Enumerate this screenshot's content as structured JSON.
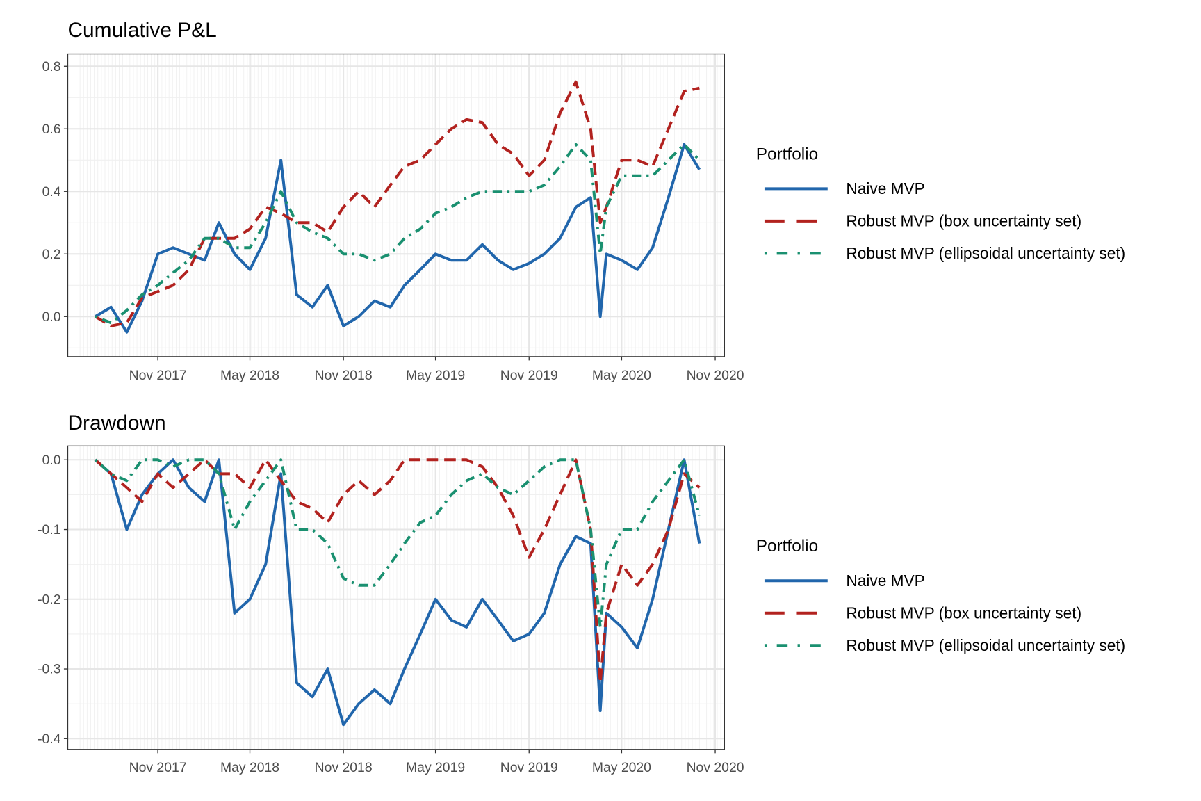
{
  "legend": {
    "title": "Portfolio",
    "entries": [
      {
        "name": "Naive MVP",
        "color": "#2166ac",
        "linetype": "solid"
      },
      {
        "name": "Robust MVP (box uncertainty set)",
        "color": "#b2221f",
        "linetype": "dashed"
      },
      {
        "name": "Robust MVP (ellipsoidal uncertainty set)",
        "color": "#1a9070",
        "linetype": "dotdash"
      }
    ]
  },
  "chart_data": [
    {
      "type": "line",
      "title": "Cumulative P&L",
      "xlabel": "",
      "ylabel": "",
      "xlim": [
        "2017-06-01",
        "2020-11-20"
      ],
      "ylim": [
        -0.128,
        0.84
      ],
      "grid": true,
      "legend_position": "right",
      "x_ticks": [
        {
          "date": "2017-11-01",
          "label": "Nov 2017"
        },
        {
          "date": "2018-05-01",
          "label": "May 2018"
        },
        {
          "date": "2018-11-01",
          "label": "Nov 2018"
        },
        {
          "date": "2019-05-01",
          "label": "May 2019"
        },
        {
          "date": "2019-11-01",
          "label": "Nov 2019"
        },
        {
          "date": "2020-05-01",
          "label": "May 2020"
        },
        {
          "date": "2020-11-01",
          "label": "Nov 2020"
        }
      ],
      "y_ticks": [
        {
          "value": 0.0,
          "label": "0.0"
        },
        {
          "value": 0.2,
          "label": "0.2"
        },
        {
          "value": 0.4,
          "label": "0.4"
        },
        {
          "value": 0.6,
          "label": "0.6"
        },
        {
          "value": 0.8,
          "label": "0.8"
        }
      ],
      "x": [
        "2017-07-01",
        "2017-08-01",
        "2017-09-01",
        "2017-10-01",
        "2017-11-01",
        "2017-12-01",
        "2018-01-01",
        "2018-02-01",
        "2018-03-01",
        "2018-04-01",
        "2018-05-01",
        "2018-06-01",
        "2018-07-01",
        "2018-08-01",
        "2018-09-01",
        "2018-10-01",
        "2018-11-01",
        "2018-12-01",
        "2019-01-01",
        "2019-02-01",
        "2019-03-01",
        "2019-04-01",
        "2019-05-01",
        "2019-06-01",
        "2019-07-01",
        "2019-08-01",
        "2019-09-01",
        "2019-10-01",
        "2019-11-01",
        "2019-12-01",
        "2020-01-01",
        "2020-02-01",
        "2020-03-01",
        "2020-03-20",
        "2020-04-01",
        "2020-05-01",
        "2020-06-01",
        "2020-07-01",
        "2020-08-01",
        "2020-09-01",
        "2020-10-01"
      ],
      "series": [
        {
          "name": "Naive MVP",
          "values": [
            0.0,
            0.03,
            -0.05,
            0.05,
            0.2,
            0.22,
            0.2,
            0.18,
            0.3,
            0.2,
            0.15,
            0.25,
            0.5,
            0.07,
            0.03,
            0.1,
            -0.03,
            0.0,
            0.05,
            0.03,
            0.1,
            0.15,
            0.2,
            0.18,
            0.18,
            0.23,
            0.18,
            0.15,
            0.17,
            0.2,
            0.25,
            0.35,
            0.38,
            0.0,
            0.2,
            0.18,
            0.15,
            0.22,
            0.38,
            0.55,
            0.47
          ]
        },
        {
          "name": "Robust MVP (box uncertainty set)",
          "values": [
            0.0,
            -0.03,
            -0.02,
            0.06,
            0.08,
            0.1,
            0.15,
            0.25,
            0.25,
            0.25,
            0.28,
            0.35,
            0.33,
            0.3,
            0.3,
            0.27,
            0.35,
            0.4,
            0.35,
            0.42,
            0.48,
            0.5,
            0.55,
            0.6,
            0.63,
            0.62,
            0.55,
            0.52,
            0.45,
            0.5,
            0.65,
            0.75,
            0.6,
            0.3,
            0.35,
            0.5,
            0.5,
            0.48,
            0.6,
            0.72,
            0.73
          ]
        },
        {
          "name": "Robust MVP (ellipsoidal uncertainty set)",
          "values": [
            0.0,
            -0.02,
            0.02,
            0.07,
            0.1,
            0.14,
            0.18,
            0.25,
            0.25,
            0.22,
            0.22,
            0.3,
            0.4,
            0.3,
            0.27,
            0.25,
            0.2,
            0.2,
            0.18,
            0.2,
            0.25,
            0.28,
            0.33,
            0.35,
            0.38,
            0.4,
            0.4,
            0.4,
            0.4,
            0.42,
            0.48,
            0.55,
            0.5,
            0.2,
            0.35,
            0.45,
            0.45,
            0.45,
            0.5,
            0.55,
            0.5
          ]
        }
      ]
    },
    {
      "type": "line",
      "title": "Drawdown",
      "xlabel": "",
      "ylabel": "",
      "xlim": [
        "2017-06-01",
        "2020-11-20"
      ],
      "ylim": [
        -0.415,
        0.02
      ],
      "grid": true,
      "legend_position": "right",
      "x_ticks": [
        {
          "date": "2017-11-01",
          "label": "Nov 2017"
        },
        {
          "date": "2018-05-01",
          "label": "May 2018"
        },
        {
          "date": "2018-11-01",
          "label": "Nov 2018"
        },
        {
          "date": "2019-05-01",
          "label": "May 2019"
        },
        {
          "date": "2019-11-01",
          "label": "Nov 2019"
        },
        {
          "date": "2020-05-01",
          "label": "May 2020"
        },
        {
          "date": "2020-11-01",
          "label": "Nov 2020"
        }
      ],
      "y_ticks": [
        {
          "value": 0.0,
          "label": "0.0"
        },
        {
          "value": -0.1,
          "label": "-0.1"
        },
        {
          "value": -0.2,
          "label": "-0.2"
        },
        {
          "value": -0.3,
          "label": "-0.3"
        },
        {
          "value": -0.4,
          "label": "-0.4"
        }
      ],
      "x": [
        "2017-07-01",
        "2017-08-01",
        "2017-09-01",
        "2017-10-01",
        "2017-11-01",
        "2017-12-01",
        "2018-01-01",
        "2018-02-01",
        "2018-03-01",
        "2018-04-01",
        "2018-05-01",
        "2018-06-01",
        "2018-07-01",
        "2018-08-01",
        "2018-09-01",
        "2018-10-01",
        "2018-11-01",
        "2018-12-01",
        "2019-01-01",
        "2019-02-01",
        "2019-03-01",
        "2019-04-01",
        "2019-05-01",
        "2019-06-01",
        "2019-07-01",
        "2019-08-01",
        "2019-09-01",
        "2019-10-01",
        "2019-11-01",
        "2019-12-01",
        "2020-01-01",
        "2020-02-01",
        "2020-03-01",
        "2020-03-20",
        "2020-04-01",
        "2020-05-01",
        "2020-06-01",
        "2020-07-01",
        "2020-08-01",
        "2020-09-01",
        "2020-10-01"
      ],
      "series": [
        {
          "name": "Naive MVP",
          "values": [
            0.0,
            -0.02,
            -0.1,
            -0.05,
            -0.02,
            0.0,
            -0.04,
            -0.06,
            0.0,
            -0.22,
            -0.2,
            -0.15,
            -0.02,
            -0.32,
            -0.34,
            -0.3,
            -0.38,
            -0.35,
            -0.33,
            -0.35,
            -0.3,
            -0.25,
            -0.2,
            -0.23,
            -0.24,
            -0.2,
            -0.23,
            -0.26,
            -0.25,
            -0.22,
            -0.15,
            -0.11,
            -0.12,
            -0.36,
            -0.22,
            -0.24,
            -0.27,
            -0.2,
            -0.1,
            0.0,
            -0.12
          ]
        },
        {
          "name": "Robust MVP (box uncertainty set)",
          "values": [
            0.0,
            -0.02,
            -0.04,
            -0.06,
            -0.02,
            -0.04,
            -0.02,
            0.0,
            -0.02,
            -0.02,
            -0.04,
            0.0,
            -0.03,
            -0.06,
            -0.07,
            -0.09,
            -0.05,
            -0.03,
            -0.05,
            -0.03,
            0.0,
            0.0,
            0.0,
            0.0,
            0.0,
            -0.01,
            -0.04,
            -0.08,
            -0.14,
            -0.1,
            -0.05,
            0.0,
            -0.1,
            -0.32,
            -0.22,
            -0.15,
            -0.18,
            -0.15,
            -0.1,
            -0.02,
            -0.04
          ]
        },
        {
          "name": "Robust MVP (ellipsoidal uncertainty set)",
          "values": [
            0.0,
            -0.02,
            -0.03,
            0.0,
            0.0,
            -0.01,
            0.0,
            0.0,
            -0.02,
            -0.1,
            -0.06,
            -0.03,
            0.0,
            -0.1,
            -0.1,
            -0.12,
            -0.17,
            -0.18,
            -0.18,
            -0.15,
            -0.12,
            -0.09,
            -0.08,
            -0.05,
            -0.03,
            -0.02,
            -0.04,
            -0.05,
            -0.03,
            -0.01,
            0.0,
            0.0,
            -0.1,
            -0.24,
            -0.15,
            -0.1,
            -0.1,
            -0.06,
            -0.03,
            0.0,
            -0.08
          ]
        }
      ]
    }
  ]
}
